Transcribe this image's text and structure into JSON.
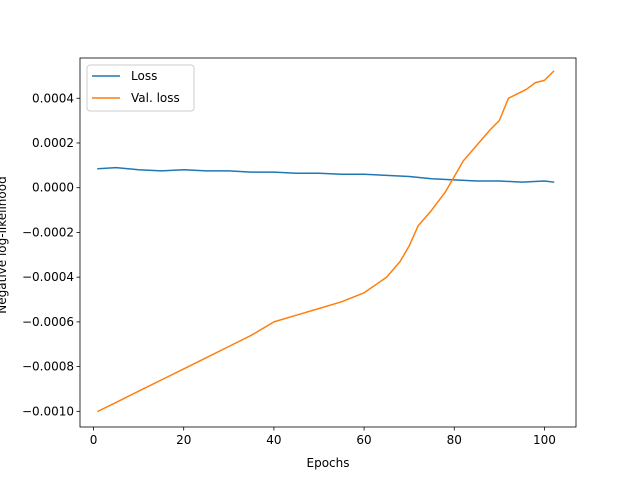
{
  "chart_data": {
    "type": "line",
    "xlabel": "Epochs",
    "ylabel": "Negative log-likelihood",
    "xlim": [
      -3,
      107
    ],
    "ylim": [
      -0.00107,
      0.00058
    ],
    "xticks": [
      0,
      20,
      40,
      60,
      80,
      100
    ],
    "xtick_labels": [
      "0",
      "20",
      "40",
      "60",
      "80",
      "100"
    ],
    "yticks": [
      -0.001,
      -0.0008,
      -0.0006,
      -0.0004,
      -0.0002,
      0.0,
      0.0002,
      0.0004
    ],
    "ytick_labels": [
      "−0.0010",
      "−0.0008",
      "−0.0006",
      "−0.0004",
      "−0.0002",
      "0.0000",
      "0.0002",
      "0.0004"
    ],
    "grid": false,
    "legend_position": "top-left",
    "series": [
      {
        "name": "Loss",
        "color": "#1f77b4",
        "x": [
          1,
          5,
          10,
          15,
          20,
          25,
          30,
          35,
          40,
          45,
          50,
          55,
          60,
          65,
          70,
          75,
          80,
          85,
          90,
          95,
          100,
          102
        ],
        "y": [
          8.5e-05,
          9e-05,
          8e-05,
          7.5e-05,
          8e-05,
          7.5e-05,
          7.5e-05,
          7e-05,
          7e-05,
          6.5e-05,
          6.5e-05,
          6e-05,
          6e-05,
          5.5e-05,
          5e-05,
          4e-05,
          3.5e-05,
          3e-05,
          3e-05,
          2.5e-05,
          3e-05,
          2.5e-05
        ]
      },
      {
        "name": "Val. loss",
        "color": "#ff7f0e",
        "x": [
          1,
          5,
          10,
          15,
          20,
          25,
          30,
          35,
          40,
          45,
          50,
          55,
          60,
          65,
          68,
          70,
          72,
          75,
          78,
          80,
          82,
          85,
          88,
          90,
          92,
          94,
          96,
          98,
          100,
          102
        ],
        "y": [
          -0.001,
          -0.00096,
          -0.00091,
          -0.00086,
          -0.00081,
          -0.00076,
          -0.00071,
          -0.00066,
          -0.0006,
          -0.00057,
          -0.00054,
          -0.00051,
          -0.00047,
          -0.0004,
          -0.00033,
          -0.00026,
          -0.00017,
          -0.0001,
          -2e-05,
          5e-05,
          0.00012,
          0.00019,
          0.00026,
          0.0003,
          0.0004,
          0.00042,
          0.00044,
          0.00047,
          0.00048,
          0.00052
        ]
      }
    ]
  }
}
